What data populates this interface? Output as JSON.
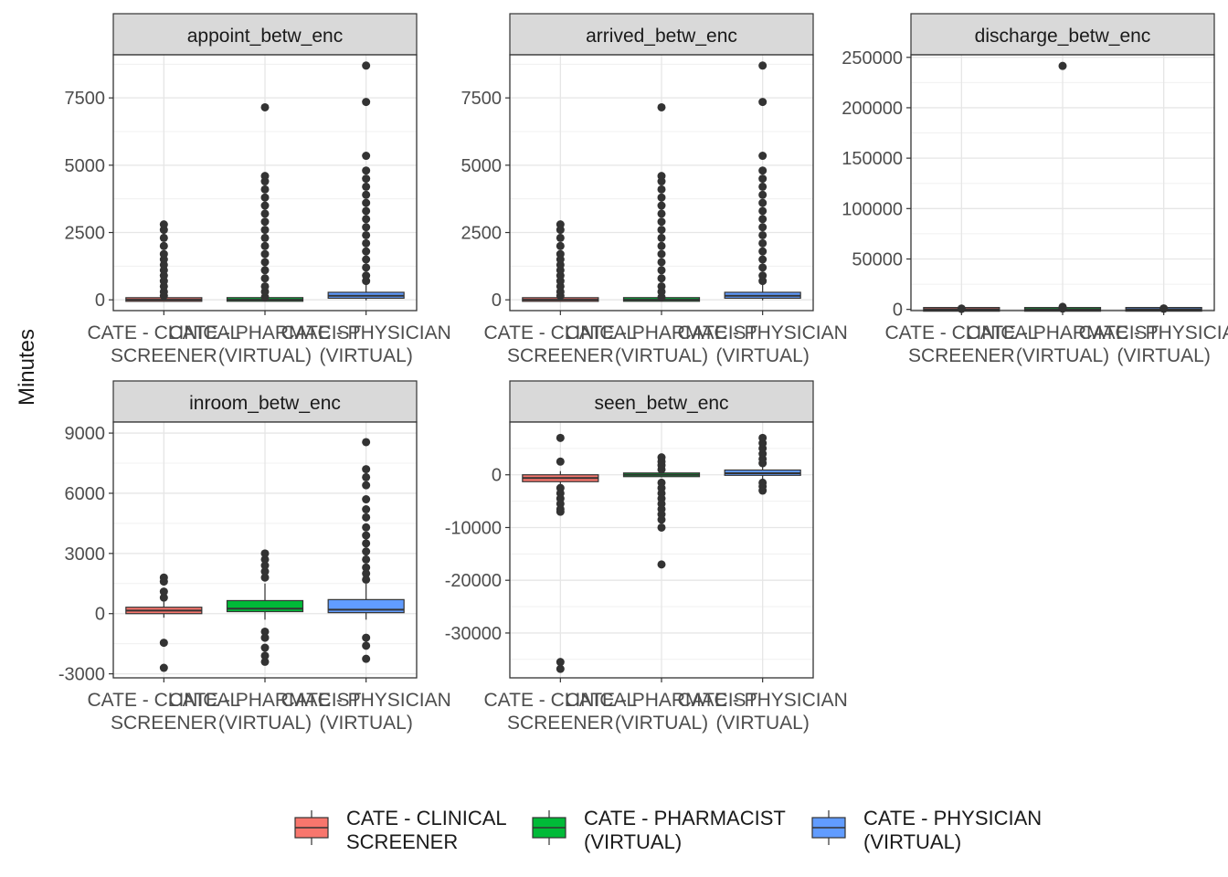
{
  "chart_data": {
    "type": "boxplot",
    "ylabel": "Minutes",
    "categories": [
      [
        "CATE - CLINICAL",
        "SCREENER"
      ],
      [
        "CATE - PHARMACIST",
        "(VIRTUAL)"
      ],
      [
        "CATE - PHYSICIAN",
        "(VIRTUAL)"
      ]
    ],
    "legend": {
      "position": "bottom",
      "entries": [
        {
          "lines": [
            "CATE - CLINICAL",
            "SCREENER"
          ],
          "color": "#F8766D"
        },
        {
          "lines": [
            "CATE - PHARMACIST",
            "(VIRTUAL)"
          ],
          "color": "#00BA38"
        },
        {
          "lines": [
            "CATE - PHYSICIAN",
            "(VIRTUAL)"
          ],
          "color": "#619CFF"
        }
      ]
    },
    "grid": true,
    "panels": [
      {
        "title": "appoint_betw_enc",
        "ylim": [
          -400,
          9100
        ],
        "yticks": [
          0,
          2500,
          5000,
          7500
        ],
        "boxes": [
          {
            "q1": 0,
            "median": 5,
            "q3": 25,
            "lo": -10,
            "hi": 60,
            "outliers": [
              150,
              300,
              500,
              700,
              900,
              1100,
              1300,
              1500,
              1700,
              2000,
              2300,
              2600,
              2800
            ]
          },
          {
            "q1": 0,
            "median": 5,
            "q3": 30,
            "lo": -10,
            "hi": 80,
            "outliers": [
              100,
              300,
              500,
              800,
              1100,
              1400,
              1700,
              2000,
              2300,
              2600,
              2900,
              3200,
              3500,
              3800,
              4100,
              4400,
              4600,
              7150
            ]
          },
          {
            "q1": 60,
            "median": 150,
            "q3": 280,
            "lo": -20,
            "hi": 600,
            "outliers": [
              700,
              900,
              1200,
              1500,
              1800,
              2100,
              2400,
              2700,
              3000,
              3300,
              3600,
              3900,
              4200,
              4500,
              4800,
              5350,
              7350,
              8700
            ]
          }
        ]
      },
      {
        "title": "arrived_betw_enc",
        "ylim": [
          -400,
          9100
        ],
        "yticks": [
          0,
          2500,
          5000,
          7500
        ],
        "boxes": [
          {
            "q1": 0,
            "median": 5,
            "q3": 25,
            "lo": -10,
            "hi": 60,
            "outliers": [
              150,
              300,
              500,
              700,
              900,
              1100,
              1300,
              1500,
              1700,
              2000,
              2300,
              2600,
              2800
            ]
          },
          {
            "q1": 0,
            "median": 5,
            "q3": 30,
            "lo": -10,
            "hi": 80,
            "outliers": [
              100,
              300,
              500,
              800,
              1100,
              1400,
              1700,
              2000,
              2300,
              2600,
              2900,
              3200,
              3500,
              3800,
              4100,
              4400,
              4600,
              7150
            ]
          },
          {
            "q1": 60,
            "median": 150,
            "q3": 280,
            "lo": -20,
            "hi": 600,
            "outliers": [
              700,
              900,
              1200,
              1500,
              1800,
              2100,
              2400,
              2700,
              3000,
              3300,
              3600,
              3900,
              4200,
              4500,
              4800,
              5350,
              7350,
              8700
            ]
          }
        ]
      },
      {
        "title": "discharge_betw_enc",
        "ylim": [
          -1200,
          252500
        ],
        "yticks": [
          0,
          50000,
          100000,
          150000,
          200000,
          250000
        ],
        "boxes": [
          {
            "q1": 0,
            "median": 0,
            "q3": 50,
            "lo": -50,
            "hi": 200,
            "outliers": [
              400,
              800
            ]
          },
          {
            "q1": 0,
            "median": 0,
            "q3": 50,
            "lo": -50,
            "hi": 200,
            "outliers": [
              800,
              1500,
              2500,
              241500
            ]
          },
          {
            "q1": 0,
            "median": 0,
            "q3": 80,
            "lo": -50,
            "hi": 300,
            "outliers": [
              600,
              1000
            ]
          }
        ]
      },
      {
        "title": "inroom_betw_enc",
        "ylim": [
          -3200,
          9550
        ],
        "yticks": [
          -3000,
          0,
          3000,
          6000,
          9000
        ],
        "boxes": [
          {
            "q1": 0,
            "median": 150,
            "q3": 320,
            "lo": -200,
            "hi": 600,
            "outliers": [
              800,
              1100,
              1600,
              1800,
              -1450,
              -2700
            ]
          },
          {
            "q1": 100,
            "median": 250,
            "q3": 650,
            "lo": -300,
            "hi": 1500,
            "outliers": [
              1800,
              2100,
              2400,
              2700,
              3000,
              -900,
              -1200,
              -1700,
              -2100,
              -2400
            ]
          },
          {
            "q1": 50,
            "median": 200,
            "q3": 700,
            "lo": -300,
            "hi": 1500,
            "outliers": [
              1700,
              2000,
              2300,
              2700,
              3100,
              3500,
              3900,
              4300,
              4800,
              5200,
              5700,
              6400,
              6800,
              7200,
              8550,
              -1200,
              -1600,
              -2250
            ]
          }
        ]
      },
      {
        "title": "seen_betw_enc",
        "ylim": [
          -38500,
          10000
        ],
        "yticks": [
          -30000,
          -20000,
          -10000,
          0
        ],
        "boxes": [
          {
            "q1": -1300,
            "median": -600,
            "q3": 0,
            "lo": -2000,
            "hi": 700,
            "outliers": [
              2500,
              7000,
              -2500,
              -3500,
              -4500,
              -5500,
              -6500,
              -7000,
              -35500,
              -36800
            ]
          },
          {
            "q1": -150,
            "median": 0,
            "q3": 150,
            "lo": -500,
            "hi": 500,
            "outliers": [
              1000,
              1800,
              2500,
              3300,
              -1500,
              -2500,
              -3500,
              -4500,
              -5500,
              -6500,
              -7500,
              -8500,
              -10000,
              -17000
            ]
          },
          {
            "q1": -100,
            "median": 300,
            "q3": 900,
            "lo": -900,
            "hi": 1800,
            "outliers": [
              2200,
              3000,
              4000,
              5000,
              6000,
              7000,
              -1500,
              -2200,
              -3000
            ]
          }
        ]
      }
    ]
  }
}
